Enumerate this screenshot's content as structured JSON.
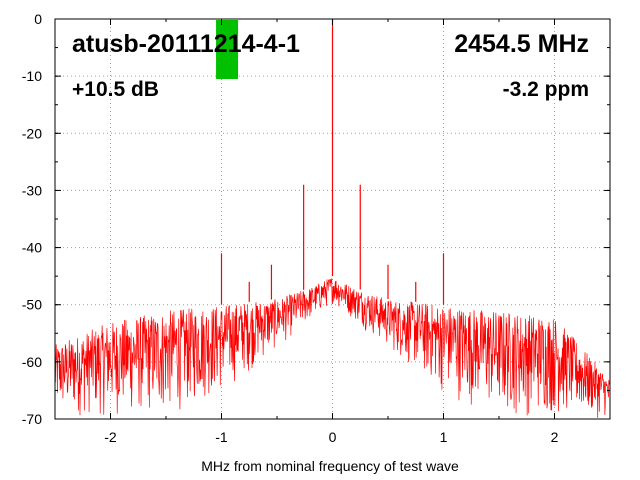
{
  "chart_data": {
    "type": "line",
    "title": "",
    "xlabel": "MHz from nominal frequency of test wave",
    "ylabel": "",
    "xlim": [
      -2.5,
      2.5
    ],
    "ylim": [
      -70,
      0
    ],
    "grid": true,
    "x_ticks": [
      -2,
      -1,
      0,
      1,
      2
    ],
    "x_tick_labels": [
      "-2",
      "-1",
      "0",
      "1",
      "2"
    ],
    "y_ticks": [
      0,
      -10,
      -20,
      -30,
      -40,
      -50,
      -60,
      -70
    ],
    "y_tick_labels": [
      "0",
      "-10",
      "-20",
      "-30",
      "-40",
      "-50",
      "-60",
      "-70"
    ],
    "annotations": {
      "device": "atusb-20111214-4-1",
      "frequency": "2454.5 MHz",
      "power": "+10.5 dB",
      "offset": "-3.2 ppm"
    },
    "level_bar": {
      "color": "#00c000",
      "x": -0.95,
      "level": -10.5
    },
    "series": [
      {
        "color": "#ff0000",
        "envelope": {
          "x": [
            -2.5,
            -2.0,
            -1.5,
            -1.0,
            -0.5,
            -0.2,
            0.0,
            0.2,
            0.5,
            1.0,
            1.5,
            2.0,
            2.5
          ],
          "upper": [
            -57,
            -53,
            -51,
            -50,
            -49,
            -47,
            -45,
            -47,
            -49,
            -50,
            -51,
            -52,
            -63
          ],
          "lower": [
            -70,
            -70,
            -70,
            -66,
            -58,
            -53,
            -50,
            -53,
            -58,
            -66,
            -70,
            -70,
            -70
          ]
        },
        "spikes": [
          {
            "x": 0.0,
            "y": 0
          },
          {
            "x": -0.26,
            "y": -29
          },
          {
            "x": 0.25,
            "y": -29
          },
          {
            "x": -1.0,
            "y": -41
          },
          {
            "x": 1.0,
            "y": -41
          },
          {
            "x": -0.55,
            "y": -43
          },
          {
            "x": 0.5,
            "y": -43
          },
          {
            "x": -0.75,
            "y": -46
          },
          {
            "x": 0.75,
            "y": -46
          }
        ]
      }
    ]
  }
}
